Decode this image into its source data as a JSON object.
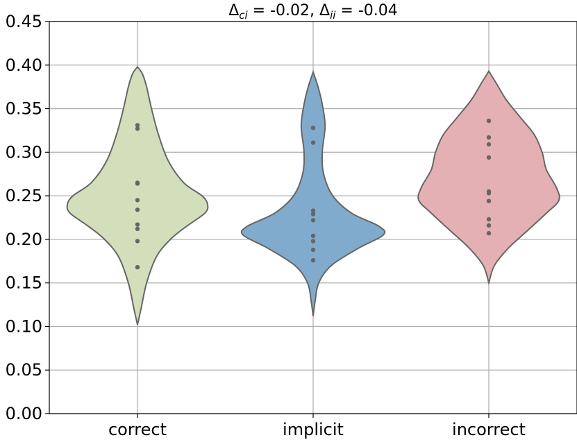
{
  "chart_data": {
    "type": "violin",
    "title_parts": {
      "delta": "Δ",
      "ci_sub": "ci",
      "ci_value": " = -0.02, ",
      "ii_sub": "ii",
      "ii_value": " = -0.04"
    },
    "xlabel": "",
    "ylabel": "",
    "ylim": [
      0.0,
      0.45
    ],
    "yticks": [
      "0.00",
      "0.05",
      "0.10",
      "0.15",
      "0.20",
      "0.25",
      "0.30",
      "0.35",
      "0.40",
      "0.45"
    ],
    "ytick_values": [
      0.0,
      0.05,
      0.1,
      0.15,
      0.2,
      0.25,
      0.3,
      0.35,
      0.4,
      0.45
    ],
    "grid": true,
    "categories": [
      "correct",
      "implicit",
      "incorrect"
    ],
    "series": [
      {
        "name": "correct",
        "color": "#d3deba",
        "range": [
          0.102,
          0.398
        ],
        "density": [
          [
            0.102,
            0
          ],
          [
            0.12,
            0.05
          ],
          [
            0.15,
            0.13
          ],
          [
            0.18,
            0.27
          ],
          [
            0.2,
            0.47
          ],
          [
            0.215,
            0.7
          ],
          [
            0.23,
            0.96
          ],
          [
            0.24,
            1.0
          ],
          [
            0.25,
            0.92
          ],
          [
            0.265,
            0.66
          ],
          [
            0.29,
            0.44
          ],
          [
            0.32,
            0.3
          ],
          [
            0.35,
            0.2
          ],
          [
            0.375,
            0.13
          ],
          [
            0.39,
            0.07
          ],
          [
            0.398,
            0
          ]
        ],
        "points": [
          0.168,
          0.198,
          0.212,
          0.217,
          0.234,
          0.245,
          0.264,
          0.265,
          0.327,
          0.331
        ]
      },
      {
        "name": "implicit",
        "color": "#80abcd",
        "range": [
          0.112,
          0.392
        ],
        "density": [
          [
            0.112,
            0
          ],
          [
            0.13,
            0.03
          ],
          [
            0.15,
            0.08
          ],
          [
            0.17,
            0.26
          ],
          [
            0.19,
            0.65
          ],
          [
            0.205,
            1.0
          ],
          [
            0.215,
            0.94
          ],
          [
            0.23,
            0.55
          ],
          [
            0.25,
            0.28
          ],
          [
            0.275,
            0.15
          ],
          [
            0.3,
            0.13
          ],
          [
            0.33,
            0.17
          ],
          [
            0.355,
            0.13
          ],
          [
            0.375,
            0.07
          ],
          [
            0.392,
            0
          ]
        ],
        "points": [
          0.176,
          0.188,
          0.198,
          0.204,
          0.222,
          0.229,
          0.233,
          0.311,
          0.328
        ]
      },
      {
        "name": "incorrect",
        "color": "#e4b0b3",
        "range": [
          0.15,
          0.393
        ],
        "density": [
          [
            0.15,
            0
          ],
          [
            0.17,
            0.08
          ],
          [
            0.19,
            0.28
          ],
          [
            0.21,
            0.55
          ],
          [
            0.23,
            0.82
          ],
          [
            0.245,
            1.0
          ],
          [
            0.26,
            0.96
          ],
          [
            0.28,
            0.82
          ],
          [
            0.3,
            0.76
          ],
          [
            0.32,
            0.65
          ],
          [
            0.34,
            0.45
          ],
          [
            0.36,
            0.25
          ],
          [
            0.38,
            0.1
          ],
          [
            0.393,
            0
          ]
        ],
        "points": [
          0.207,
          0.216,
          0.223,
          0.244,
          0.253,
          0.255,
          0.294,
          0.309,
          0.317,
          0.336
        ]
      }
    ]
  }
}
